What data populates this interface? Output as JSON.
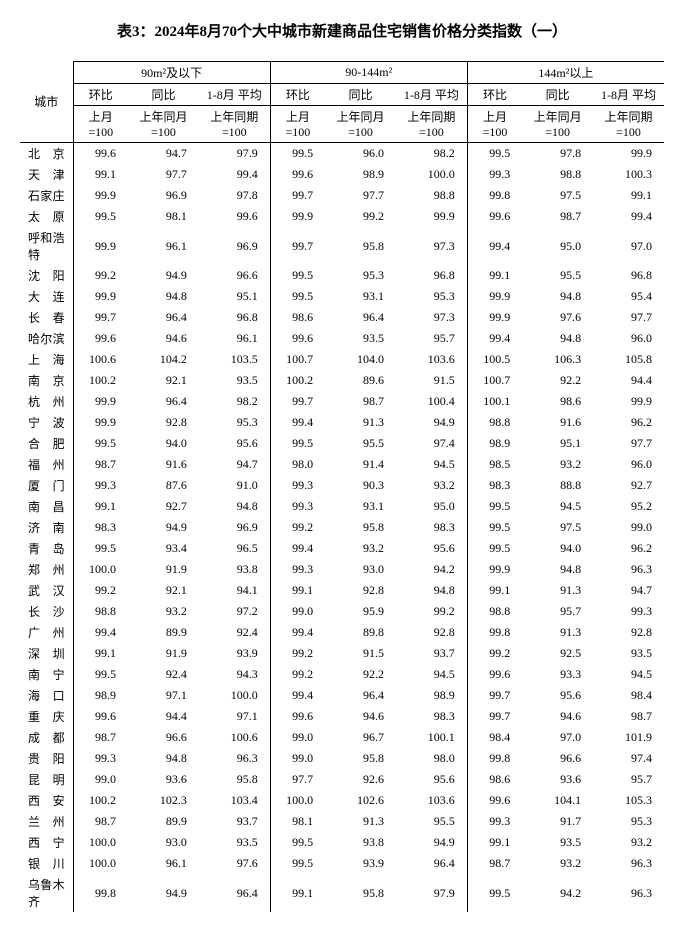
{
  "title": "表3：2024年8月70个大中城市新建商品住宅销售价格分类指数（一）",
  "header": {
    "city": "城市",
    "groups": [
      "90m²及以下",
      "90-144m²",
      "144m²以上"
    ],
    "sub": [
      "环比",
      "同比",
      "1-8月\n平均"
    ],
    "base": [
      "上月\n=100",
      "上年同月\n=100",
      "上年同期\n=100"
    ]
  },
  "style": {
    "font_family": "SimSun",
    "title_fontsize": 15,
    "body_fontsize": 12,
    "colors": {
      "text": "#000000",
      "background": "#ffffff",
      "border": "#000000"
    }
  },
  "rows": [
    {
      "city": "北京",
      "v": [
        99.6,
        94.7,
        97.9,
        99.5,
        96.0,
        98.2,
        99.5,
        97.8,
        99.9
      ]
    },
    {
      "city": "天津",
      "v": [
        99.1,
        97.7,
        99.4,
        99.6,
        98.9,
        100.0,
        99.3,
        98.8,
        100.3
      ]
    },
    {
      "city": "石家庄",
      "v": [
        99.9,
        96.9,
        97.8,
        99.7,
        97.7,
        98.8,
        99.8,
        97.5,
        99.1
      ]
    },
    {
      "city": "太原",
      "v": [
        99.5,
        98.1,
        99.6,
        99.9,
        99.2,
        99.9,
        99.6,
        98.7,
        99.4
      ]
    },
    {
      "city": "呼和浩特",
      "v": [
        99.9,
        96.1,
        96.9,
        99.7,
        95.8,
        97.3,
        99.4,
        95.0,
        97.0
      ]
    },
    {
      "city": "沈阳",
      "v": [
        99.2,
        94.9,
        96.6,
        99.5,
        95.3,
        96.8,
        99.1,
        95.5,
        96.8
      ]
    },
    {
      "city": "大连",
      "v": [
        99.9,
        94.8,
        95.1,
        99.5,
        93.1,
        95.3,
        99.9,
        94.8,
        95.4
      ]
    },
    {
      "city": "长春",
      "v": [
        99.7,
        96.4,
        96.8,
        98.6,
        96.4,
        97.3,
        99.9,
        97.6,
        97.7
      ]
    },
    {
      "city": "哈尔滨",
      "v": [
        99.6,
        94.6,
        96.1,
        99.6,
        93.5,
        95.7,
        99.4,
        94.8,
        96.0
      ]
    },
    {
      "city": "上海",
      "v": [
        100.6,
        104.2,
        103.5,
        100.7,
        104.0,
        103.6,
        100.5,
        106.3,
        105.8
      ]
    },
    {
      "city": "南京",
      "v": [
        100.2,
        92.1,
        93.5,
        100.2,
        89.6,
        91.5,
        100.7,
        92.2,
        94.4
      ]
    },
    {
      "city": "杭州",
      "v": [
        99.9,
        96.4,
        98.2,
        99.7,
        98.7,
        100.4,
        100.1,
        98.6,
        99.9
      ]
    },
    {
      "city": "宁波",
      "v": [
        99.9,
        92.8,
        95.3,
        99.4,
        91.3,
        94.9,
        98.8,
        91.6,
        96.2
      ]
    },
    {
      "city": "合肥",
      "v": [
        99.5,
        94.0,
        95.6,
        99.5,
        95.5,
        97.4,
        98.9,
        95.1,
        97.7
      ]
    },
    {
      "city": "福州",
      "v": [
        98.7,
        91.6,
        94.7,
        98.0,
        91.4,
        94.5,
        98.5,
        93.2,
        96.0
      ]
    },
    {
      "city": "厦门",
      "v": [
        99.3,
        87.6,
        91.0,
        99.3,
        90.3,
        93.2,
        98.3,
        88.8,
        92.7
      ]
    },
    {
      "city": "南昌",
      "v": [
        99.1,
        92.7,
        94.8,
        99.3,
        93.1,
        95.0,
        99.5,
        94.5,
        95.2
      ]
    },
    {
      "city": "济南",
      "v": [
        98.3,
        94.9,
        96.9,
        99.2,
        95.8,
        98.3,
        99.5,
        97.5,
        99.0
      ]
    },
    {
      "city": "青岛",
      "v": [
        99.5,
        93.4,
        96.5,
        99.4,
        93.2,
        95.6,
        99.5,
        94.0,
        96.2
      ]
    },
    {
      "city": "郑州",
      "v": [
        100.0,
        91.9,
        93.8,
        99.3,
        93.0,
        94.2,
        99.9,
        94.8,
        96.3
      ]
    },
    {
      "city": "武汉",
      "v": [
        99.2,
        92.1,
        94.1,
        99.1,
        92.8,
        94.8,
        99.1,
        91.3,
        94.7
      ]
    },
    {
      "city": "长沙",
      "v": [
        98.8,
        93.2,
        97.2,
        99.0,
        95.9,
        99.2,
        98.8,
        95.7,
        99.3
      ]
    },
    {
      "city": "广州",
      "v": [
        99.4,
        89.9,
        92.4,
        99.4,
        89.8,
        92.8,
        99.8,
        91.3,
        92.8
      ]
    },
    {
      "city": "深圳",
      "v": [
        99.1,
        91.9,
        93.9,
        99.2,
        91.5,
        93.7,
        99.2,
        92.5,
        93.5
      ]
    },
    {
      "city": "南宁",
      "v": [
        99.5,
        92.4,
        94.3,
        99.2,
        92.2,
        94.5,
        99.6,
        93.3,
        94.5
      ]
    },
    {
      "city": "海口",
      "v": [
        98.9,
        97.1,
        100.0,
        99.4,
        96.4,
        98.9,
        99.7,
        95.6,
        98.4
      ]
    },
    {
      "city": "重庆",
      "v": [
        99.6,
        94.4,
        97.1,
        99.6,
        94.6,
        98.3,
        99.7,
        94.6,
        98.7
      ]
    },
    {
      "city": "成都",
      "v": [
        98.7,
        96.6,
        100.6,
        99.0,
        96.7,
        100.1,
        98.4,
        97.0,
        101.9
      ]
    },
    {
      "city": "贵阳",
      "v": [
        99.3,
        94.8,
        96.3,
        99.0,
        95.8,
        98.0,
        99.8,
        96.6,
        97.4
      ]
    },
    {
      "city": "昆明",
      "v": [
        99.0,
        93.6,
        95.8,
        97.7,
        92.6,
        95.6,
        98.6,
        93.6,
        95.7
      ]
    },
    {
      "city": "西安",
      "v": [
        100.2,
        102.3,
        103.4,
        100.0,
        102.6,
        103.6,
        99.6,
        104.1,
        105.3
      ]
    },
    {
      "city": "兰州",
      "v": [
        98.7,
        89.9,
        93.7,
        98.1,
        91.3,
        95.5,
        99.3,
        91.7,
        95.3
      ]
    },
    {
      "city": "西宁",
      "v": [
        100.0,
        93.0,
        93.5,
        99.5,
        93.8,
        94.9,
        99.1,
        93.5,
        93.2
      ]
    },
    {
      "city": "银川",
      "v": [
        100.0,
        96.1,
        97.6,
        99.5,
        93.9,
        96.4,
        98.7,
        93.2,
        96.3
      ]
    },
    {
      "city": "乌鲁木齐",
      "v": [
        99.8,
        94.9,
        96.4,
        99.1,
        95.8,
        97.9,
        99.5,
        94.2,
        96.3
      ]
    }
  ]
}
